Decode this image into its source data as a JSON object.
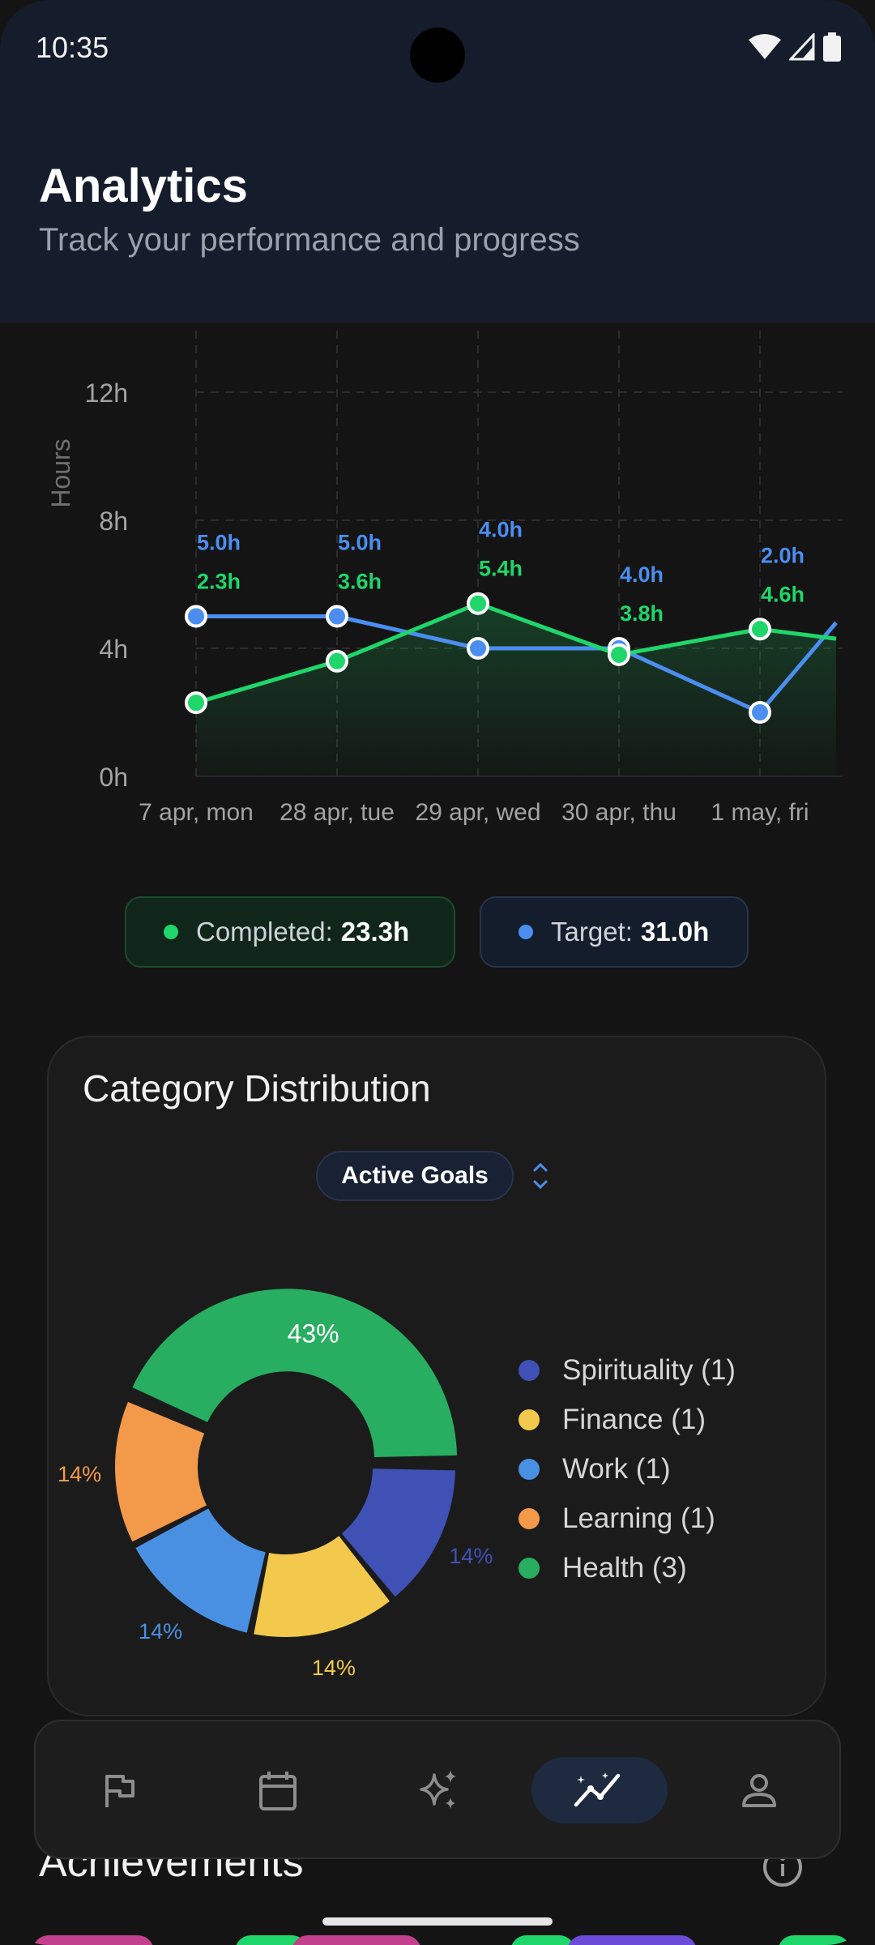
{
  "status_bar": {
    "time": "10:35"
  },
  "header": {
    "title": "Analytics",
    "subtitle": "Track your performance and progress"
  },
  "chart_data": {
    "type": "line",
    "x": [
      "7 apr, mon",
      "28 apr, tue",
      "29 apr, wed",
      "30 apr, thu",
      "1 may, fri"
    ],
    "ylabel": "Hours",
    "yticks": [
      "0h",
      "4h",
      "8h",
      "12h"
    ],
    "ylim": [
      0,
      12
    ],
    "series": [
      {
        "name": "Completed",
        "color": "#1fd66a",
        "values": [
          2.3,
          3.6,
          5.4,
          3.8,
          4.6
        ],
        "labels": [
          "2.3h",
          "3.6h",
          "5.4h",
          "3.8h",
          "4.6h"
        ]
      },
      {
        "name": "Target",
        "color": "#4b8ef0",
        "values": [
          5.0,
          5.0,
          4.0,
          4.0,
          2.0
        ],
        "labels": [
          "5.0h",
          "5.0h",
          "4.0h",
          "4.0h",
          "2.0h"
        ]
      }
    ],
    "grid": true
  },
  "summary": {
    "completed_label": "Completed:",
    "completed_value": "23.3h",
    "target_label": "Target:",
    "target_value": "31.0h"
  },
  "category_card": {
    "title": "Category Distribution",
    "selector_value": "Active Goals",
    "pie": {
      "type": "pie",
      "slices": [
        {
          "label": "Health",
          "percent": 43,
          "text": "43%",
          "color": "#27ae60"
        },
        {
          "label": "Spirituality",
          "percent": 14,
          "text": "14%",
          "color": "#3f51b5"
        },
        {
          "label": "Finance",
          "percent": 14,
          "text": "14%",
          "color": "#f2c94c"
        },
        {
          "label": "Work",
          "percent": 14,
          "text": "14%",
          "color": "#4a90e2"
        },
        {
          "label": "Learning",
          "percent": 14,
          "text": "14%",
          "color": "#f2994a"
        }
      ]
    },
    "legend": [
      {
        "label": "Spirituality (1)",
        "color": "#3f51b5"
      },
      {
        "label": "Finance (1)",
        "color": "#f2c94c"
      },
      {
        "label": "Work (1)",
        "color": "#4a90e2"
      },
      {
        "label": "Learning (1)",
        "color": "#f2994a"
      },
      {
        "label": "Health (3)",
        "color": "#27ae60"
      }
    ]
  },
  "achievements": {
    "title": "Achievements"
  },
  "nav": {
    "items": [
      {
        "icon": "flag-icon",
        "active": false
      },
      {
        "icon": "calendar-icon",
        "active": false
      },
      {
        "icon": "sparkles-icon",
        "active": false
      },
      {
        "icon": "analytics-icon",
        "active": true
      },
      {
        "icon": "profile-icon",
        "active": false
      }
    ]
  }
}
